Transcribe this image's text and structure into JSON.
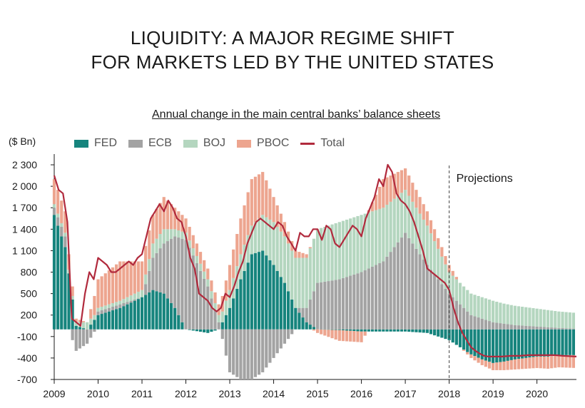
{
  "title_line1": "LIQUIDITY: A MAJOR REGIME SHIFT",
  "title_line2": "FOR MARKETS LED BY THE UNITED STATES",
  "colors": {
    "fed": "#16847d",
    "ecb": "#a3a3a3",
    "boj": "#b4d6bf",
    "pboc": "#eda58f",
    "total": "#b12a3d"
  },
  "chart_data": {
    "type": "bar",
    "stacked": true,
    "title": "LIQUIDITY: A MAJOR REGIME SHIFT FOR MARKETS LED BY THE UNITED STATES",
    "subtitle": "Annual change in the main central banks’ balance sheets",
    "ylabel": "($ Bn)",
    "xlabel": "",
    "ylim": [
      -700,
      2450
    ],
    "xlim": [
      2009.0,
      2020.9
    ],
    "yticks": [
      2300,
      2000,
      1700,
      1400,
      1100,
      800,
      500,
      200,
      -100,
      -400,
      -700
    ],
    "ytick_labels": [
      "2 300",
      "2 000",
      "1 700",
      "1 400",
      "1 100",
      "800",
      "500",
      "200",
      "-100",
      "-400",
      "-700"
    ],
    "xticks": [
      2009,
      2010,
      2011,
      2012,
      2013,
      2014,
      2015,
      2016,
      2017,
      2018,
      2019,
      2020
    ],
    "xtick_labels": [
      "2009",
      "2010",
      "2011",
      "2012",
      "2013",
      "2014",
      "2015",
      "2016",
      "2017",
      "2018",
      "2019",
      "2020"
    ],
    "projection_start": 2018.0,
    "projection_label": "Projections",
    "grid": false,
    "legend_position": "top-left",
    "series": [
      {
        "name": "FED",
        "kind": "bar",
        "x": [
          2009.0,
          2009.25,
          2009.5,
          2009.75,
          2010.0,
          2010.5,
          2011.0,
          2011.25,
          2011.5,
          2011.75,
          2012.0,
          2012.5,
          2012.75,
          2013.0,
          2013.25,
          2013.5,
          2013.75,
          2014.0,
          2014.25,
          2014.5,
          2014.75,
          2015.0,
          2015.5,
          2016.0,
          2016.5,
          2017.0,
          2017.5,
          2018.0,
          2018.25,
          2018.5,
          2018.75,
          2019.0,
          2019.25,
          2019.5,
          2019.75,
          2020.0,
          2020.25,
          2020.5,
          2020.9
        ],
        "values": [
          1600,
          1150,
          50,
          0,
          200,
          300,
          450,
          550,
          500,
          300,
          0,
          -50,
          0,
          300,
          700,
          1050,
          1100,
          900,
          650,
          300,
          100,
          0,
          -10,
          -30,
          -30,
          -30,
          -50,
          -150,
          -250,
          -350,
          -420,
          -470,
          -450,
          -420,
          -400,
          -380,
          -380,
          -360,
          -360
        ]
      },
      {
        "name": "ECB",
        "kind": "bar",
        "x": [
          2009.0,
          2009.25,
          2009.5,
          2009.75,
          2010.0,
          2010.5,
          2011.0,
          2011.25,
          2011.5,
          2011.75,
          2012.0,
          2012.5,
          2012.75,
          2013.0,
          2013.25,
          2013.5,
          2013.75,
          2014.0,
          2014.25,
          2014.5,
          2014.75,
          2015.0,
          2015.5,
          2016.0,
          2016.5,
          2017.0,
          2017.5,
          2018.0,
          2018.25,
          2018.5,
          2018.75,
          2019.0,
          2019.25,
          2019.5,
          2019.75,
          2020.0,
          2020.25,
          2020.5,
          2020.9
        ],
        "values": [
          100,
          150,
          -300,
          -200,
          50,
          50,
          0,
          450,
          700,
          1000,
          1250,
          600,
          100,
          -600,
          -700,
          -700,
          -600,
          -400,
          -200,
          0,
          200,
          650,
          700,
          800,
          950,
          1350,
          900,
          500,
          350,
          200,
          150,
          100,
          80,
          60,
          50,
          40,
          30,
          20,
          10
        ]
      },
      {
        "name": "BOJ",
        "kind": "bar",
        "x": [
          2009.0,
          2009.25,
          2009.5,
          2009.75,
          2010.0,
          2010.5,
          2011.0,
          2011.25,
          2011.5,
          2011.75,
          2012.0,
          2012.5,
          2012.75,
          2013.0,
          2013.25,
          2013.5,
          2013.75,
          2014.0,
          2014.25,
          2014.5,
          2014.75,
          2015.0,
          2015.5,
          2016.0,
          2016.5,
          2017.0,
          2017.5,
          2018.0,
          2018.25,
          2018.5,
          2018.75,
          2019.0,
          2019.25,
          2019.5,
          2019.75,
          2020.0,
          2020.25,
          2020.5,
          2020.9
        ],
        "values": [
          50,
          50,
          50,
          100,
          50,
          50,
          100,
          200,
          200,
          100,
          100,
          100,
          100,
          250,
          350,
          400,
          500,
          600,
          650,
          700,
          700,
          750,
          800,
          800,
          750,
          600,
          550,
          300,
          300,
          300,
          300,
          300,
          280,
          270,
          260,
          250,
          240,
          230,
          220
        ]
      },
      {
        "name": "PBOC",
        "kind": "bar",
        "x": [
          2009.0,
          2009.25,
          2009.5,
          2009.75,
          2010.0,
          2010.5,
          2011.0,
          2011.25,
          2011.5,
          2011.75,
          2012.0,
          2012.5,
          2012.75,
          2013.0,
          2013.25,
          2013.5,
          2013.75,
          2014.0,
          2014.25,
          2014.5,
          2014.75,
          2015.0,
          2015.5,
          2016.0,
          2016.5,
          2017.0,
          2017.5,
          2018.0,
          2018.25,
          2018.5,
          2018.75,
          2019.0,
          2019.25,
          2019.5,
          2019.75,
          2020.0,
          2020.25,
          2020.5,
          2020.9
        ],
        "values": [
          350,
          300,
          50,
          0,
          400,
          550,
          400,
          400,
          450,
          300,
          200,
          150,
          150,
          350,
          500,
          650,
          600,
          350,
          200,
          100,
          50,
          -50,
          -150,
          -150,
          400,
          300,
          200,
          100,
          0,
          -50,
          -80,
          -100,
          -120,
          -140,
          -150,
          -160,
          -170,
          -170,
          -180
        ]
      },
      {
        "name": "Total",
        "kind": "line",
        "x": [
          2009.0,
          2009.1,
          2009.2,
          2009.3,
          2009.4,
          2009.5,
          2009.6,
          2009.7,
          2009.8,
          2009.9,
          2010.0,
          2010.1,
          2010.2,
          2010.3,
          2010.4,
          2010.5,
          2010.6,
          2010.7,
          2010.8,
          2010.9,
          2011.0,
          2011.1,
          2011.2,
          2011.3,
          2011.4,
          2011.5,
          2011.6,
          2011.7,
          2011.8,
          2011.9,
          2012.0,
          2012.1,
          2012.2,
          2012.3,
          2012.4,
          2012.5,
          2012.6,
          2012.7,
          2012.8,
          2012.9,
          2013.0,
          2013.1,
          2013.2,
          2013.3,
          2013.4,
          2013.5,
          2013.6,
          2013.7,
          2013.8,
          2013.9,
          2014.0,
          2014.1,
          2014.2,
          2014.3,
          2014.4,
          2014.5,
          2014.6,
          2014.7,
          2014.8,
          2014.9,
          2015.0,
          2015.1,
          2015.2,
          2015.3,
          2015.4,
          2015.5,
          2015.6,
          2015.7,
          2015.8,
          2015.9,
          2016.0,
          2016.1,
          2016.2,
          2016.3,
          2016.4,
          2016.5,
          2016.6,
          2016.7,
          2016.8,
          2016.9,
          2017.0,
          2017.1,
          2017.2,
          2017.3,
          2017.4,
          2017.5,
          2017.6,
          2017.7,
          2017.8,
          2017.9,
          2018.0,
          2018.1,
          2018.2,
          2018.3,
          2018.4,
          2018.5,
          2018.6,
          2018.7,
          2018.8,
          2018.9,
          2019.0,
          2019.2,
          2019.4,
          2019.6,
          2019.8,
          2020.0,
          2020.2,
          2020.4,
          2020.6,
          2020.9
        ],
        "values": [
          2150,
          1950,
          1900,
          1500,
          150,
          100,
          50,
          500,
          800,
          700,
          1000,
          950,
          900,
          800,
          800,
          850,
          900,
          950,
          900,
          1000,
          1050,
          1300,
          1550,
          1650,
          1750,
          1650,
          1800,
          1700,
          1550,
          1500,
          1300,
          1000,
          850,
          500,
          450,
          400,
          300,
          250,
          300,
          500,
          450,
          600,
          800,
          950,
          1200,
          1350,
          1500,
          1550,
          1500,
          1450,
          1400,
          1500,
          1450,
          1300,
          1200,
          1100,
          1350,
          1300,
          1300,
          1400,
          1400,
          1250,
          1450,
          1400,
          1200,
          1150,
          1250,
          1350,
          1450,
          1400,
          1300,
          1550,
          1700,
          1850,
          2100,
          2000,
          2300,
          2200,
          1900,
          1800,
          1750,
          1650,
          1500,
          1300,
          1100,
          850,
          800,
          750,
          700,
          650,
          550,
          300,
          100,
          -50,
          -150,
          -250,
          -300,
          -340,
          -370,
          -380,
          -380,
          -380,
          -370,
          -370,
          -360,
          -360,
          -360,
          -360,
          -370,
          -380
        ]
      }
    ]
  }
}
